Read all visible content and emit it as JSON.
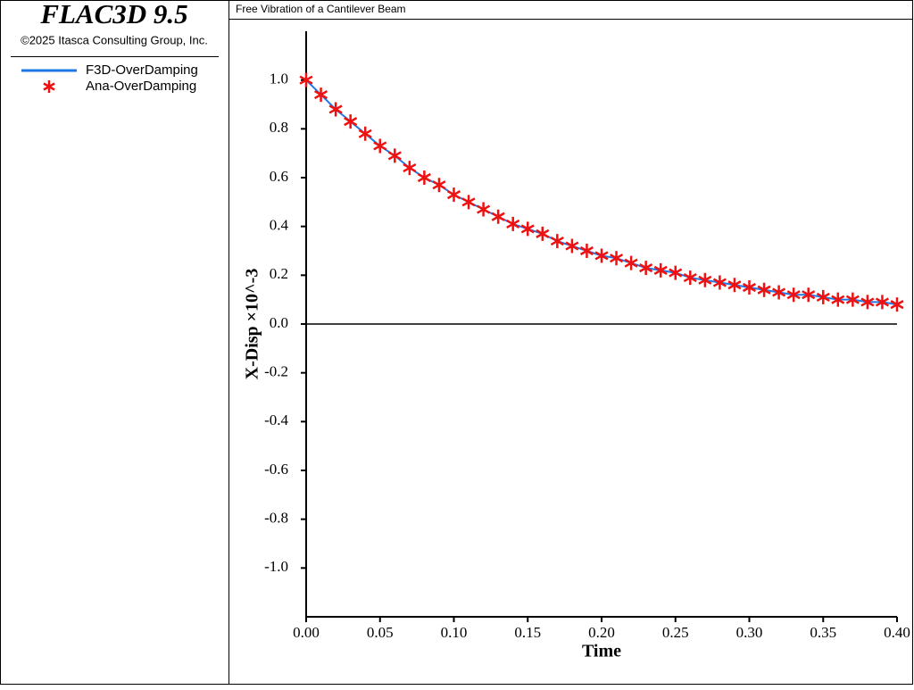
{
  "app": {
    "title": "FLAC3D 9.5",
    "copyright": "©2025 Itasca Consulting Group, Inc."
  },
  "chart_data": {
    "type": "line",
    "title": "Free Vibration of a Cantilever Beam",
    "x_label": "Time",
    "y_label": "X-Disp ×10^-3",
    "x": [
      0,
      0.01,
      0.02,
      0.03,
      0.04,
      0.05,
      0.06,
      0.07,
      0.08,
      0.09,
      0.1,
      0.11,
      0.12,
      0.13,
      0.14,
      0.15,
      0.16,
      0.17,
      0.18,
      0.19,
      0.2,
      0.21,
      0.22,
      0.23,
      0.24,
      0.25,
      0.26,
      0.27,
      0.28,
      0.29,
      0.3,
      0.31,
      0.32,
      0.33,
      0.34,
      0.35,
      0.36,
      0.37,
      0.38,
      0.39,
      0.4
    ],
    "series": [
      {
        "name": "F3D-OverDamping",
        "color": "#1e78e6",
        "style": "line",
        "values": [
          1.0,
          0.94,
          0.88,
          0.83,
          0.78,
          0.73,
          0.69,
          0.64,
          0.6,
          0.57,
          0.53,
          0.5,
          0.47,
          0.44,
          0.41,
          0.39,
          0.37,
          0.34,
          0.32,
          0.3,
          0.28,
          0.27,
          0.25,
          0.23,
          0.22,
          0.21,
          0.19,
          0.18,
          0.17,
          0.16,
          0.15,
          0.14,
          0.13,
          0.12,
          0.12,
          0.11,
          0.1,
          0.1,
          0.09,
          0.09,
          0.08
        ]
      },
      {
        "name": "Ana-OverDamping",
        "color": "#ee1111",
        "style": "asterisk",
        "values": [
          1.0,
          0.94,
          0.88,
          0.83,
          0.78,
          0.73,
          0.69,
          0.64,
          0.6,
          0.57,
          0.53,
          0.5,
          0.47,
          0.44,
          0.41,
          0.39,
          0.37,
          0.34,
          0.32,
          0.3,
          0.28,
          0.27,
          0.25,
          0.23,
          0.22,
          0.21,
          0.19,
          0.18,
          0.17,
          0.16,
          0.15,
          0.14,
          0.13,
          0.12,
          0.12,
          0.11,
          0.1,
          0.1,
          0.09,
          0.09,
          0.08
        ]
      }
    ],
    "xlim": [
      0,
      0.4
    ],
    "xticks": [
      {
        "value": 0,
        "label": "0.00"
      },
      0.05,
      {
        "value": 0.1,
        "label": "0.10"
      },
      0.15,
      {
        "value": 0.2,
        "label": "0.20"
      },
      0.25,
      {
        "value": 0.3,
        "label": "0.30"
      },
      0.35,
      {
        "value": 0.4,
        "label": "0.40"
      }
    ],
    "ylim": [
      -1.2,
      1.2
    ],
    "yticks": [
      {
        "value": -1,
        "label": "-1.0"
      },
      -0.8,
      -0.6,
      -0.4,
      -0.2,
      {
        "value": 0,
        "label": "0.0"
      },
      0.2,
      0.4,
      0.6,
      0.8,
      {
        "value": 1,
        "label": "1.0"
      }
    ],
    "zero_line": true
  }
}
